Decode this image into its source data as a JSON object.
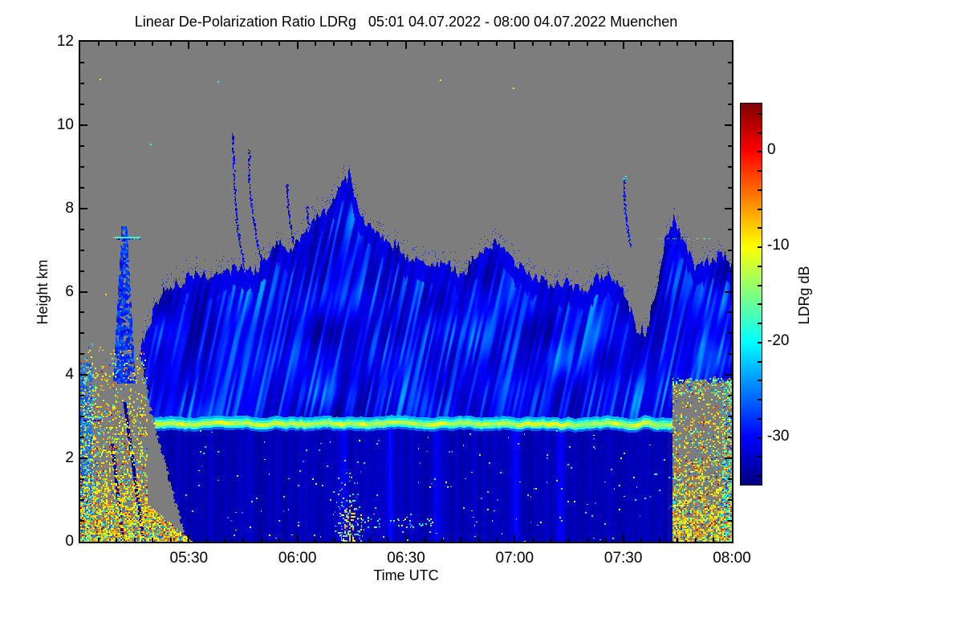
{
  "chart_data": {
    "type": "heatmap",
    "title": "Linear De-Polarization Ratio LDRg   05:01 04.07.2022 - 08:00 04.07.2022 Muenchen",
    "quantity": "Linear De-Polarization Ratio LDRg",
    "time_span": "05:01 04.07.2022 - 08:00 04.07.2022",
    "station": "Muenchen",
    "xlabel": "Time UTC",
    "ylabel": "Height km",
    "x_range_hours": [
      5.0,
      8.0
    ],
    "y_range_km": [
      0,
      12
    ],
    "x_ticks": [
      {
        "hour": 5.5,
        "label": "05:30"
      },
      {
        "hour": 6.0,
        "label": "06:00"
      },
      {
        "hour": 6.5,
        "label": "06:30"
      },
      {
        "hour": 7.0,
        "label": "07:00"
      },
      {
        "hour": 7.5,
        "label": "07:30"
      },
      {
        "hour": 8.0,
        "label": "08:00"
      }
    ],
    "x_minor_step_hours": 0.0833333,
    "y_ticks": [
      {
        "km": 0,
        "label": "0"
      },
      {
        "km": 2,
        "label": "2"
      },
      {
        "km": 4,
        "label": "4"
      },
      {
        "km": 6,
        "label": "6"
      },
      {
        "km": 8,
        "label": "8"
      },
      {
        "km": 10,
        "label": "10"
      },
      {
        "km": 12,
        "label": "12"
      }
    ],
    "y_minor_step_km": 0.5,
    "grid": false,
    "no_data_color": "#7d7d7d",
    "colorbar": {
      "label": "LDRg dB",
      "colormap": "jet",
      "range_db": [
        -35,
        5
      ],
      "ticks": [
        {
          "db": 0,
          "label": "0"
        },
        {
          "db": -10,
          "label": "-10"
        },
        {
          "db": -20,
          "label": "-20"
        },
        {
          "db": -30,
          "label": "-30"
        }
      ],
      "minor_step_db": 2,
      "gradient_stops": [
        [
          "#00007f",
          0
        ],
        [
          "#0000ff",
          12.5
        ],
        [
          "#00ffff",
          37.5
        ],
        [
          "#80ff80",
          50
        ],
        [
          "#ffff00",
          62.5
        ],
        [
          "#ff8000",
          75
        ],
        [
          "#ff0000",
          87.5
        ],
        [
          "#7f0000",
          100
        ]
      ]
    },
    "render": {
      "vmin": -35,
      "vmax": 5,
      "cloud_top_profile": [
        [
          5.24,
          4.1
        ],
        [
          5.3,
          5.0
        ],
        [
          5.37,
          5.9
        ],
        [
          5.48,
          6.3
        ],
        [
          5.61,
          6.4
        ],
        [
          5.74,
          6.6
        ],
        [
          5.81,
          6.4
        ],
        [
          5.91,
          7.2
        ],
        [
          5.96,
          6.9
        ],
        [
          6.06,
          7.6
        ],
        [
          6.15,
          8.1
        ],
        [
          6.24,
          8.9
        ],
        [
          6.28,
          8.0
        ],
        [
          6.33,
          7.5
        ],
        [
          6.41,
          7.3
        ],
        [
          6.5,
          6.9
        ],
        [
          6.59,
          6.7
        ],
        [
          6.69,
          6.7
        ],
        [
          6.76,
          6.4
        ],
        [
          6.85,
          7.0
        ],
        [
          6.91,
          7.2
        ],
        [
          7.0,
          6.7
        ],
        [
          7.11,
          6.3
        ],
        [
          7.22,
          6.2
        ],
        [
          7.33,
          6.0
        ],
        [
          7.43,
          6.5
        ],
        [
          7.5,
          6.1
        ],
        [
          7.56,
          5.2
        ],
        [
          7.61,
          5.0
        ],
        [
          7.69,
          7.2
        ],
        [
          7.73,
          7.7
        ],
        [
          7.78,
          7.2
        ],
        [
          7.83,
          6.7
        ],
        [
          7.89,
          6.7
        ],
        [
          7.96,
          6.9
        ],
        [
          8.0,
          6.7
        ]
      ],
      "cloud_left_edge": [
        [
          0,
          5.49
        ],
        [
          0.6,
          5.458
        ],
        [
          1.4,
          5.414
        ],
        [
          2.2,
          5.373
        ],
        [
          3.0,
          5.33
        ],
        [
          3.8,
          5.303
        ],
        [
          4.4,
          5.281
        ],
        [
          4.9,
          5.263
        ],
        [
          5.2,
          5.285
        ],
        [
          5.7,
          5.33
        ],
        [
          6.1,
          5.36
        ],
        [
          6.45,
          5.31
        ],
        [
          12,
          5.3
        ]
      ],
      "melting_layer": {
        "km": 2.82,
        "from": 5.285,
        "to": 7.728,
        "core_db": -12.5,
        "edge_db": -18.2
      },
      "ml_left_segment": {
        "from": 5.013,
        "to": 5.095,
        "km": 3.0,
        "db": -19
      },
      "right_gray": {
        "from_hour": 7.727,
        "top_km": 3.85
      },
      "tower": {
        "center_hour": 5.203,
        "base_km": 3.9,
        "top_km": 7.52
      },
      "bright_cols": [
        6.215,
        6.43,
        6.64,
        7.005,
        7.215
      ],
      "virga": [
        [
          [
            5.7,
            9.8
          ],
          [
            5.703,
            9.2
          ],
          [
            5.708,
            8.5
          ],
          [
            5.72,
            7.6
          ],
          [
            5.745,
            6.8
          ],
          [
            5.775,
            6.1
          ]
        ],
        [
          [
            5.775,
            9.45
          ],
          [
            5.775,
            8.7
          ],
          [
            5.79,
            7.9
          ],
          [
            5.815,
            7.1
          ],
          [
            5.85,
            6.4
          ]
        ],
        [
          [
            5.95,
            8.6
          ],
          [
            5.955,
            8.0
          ],
          [
            5.975,
            7.3
          ],
          [
            6.0,
            6.8
          ]
        ],
        [
          [
            6.04,
            8.05
          ],
          [
            6.05,
            7.6
          ],
          [
            6.07,
            7.15
          ]
        ]
      ],
      "streak_0730": [
        [
          7.503,
          8.68
        ],
        [
          7.502,
          8.3
        ],
        [
          7.507,
          7.9
        ],
        [
          7.52,
          7.45
        ],
        [
          7.53,
          7.1
        ]
      ],
      "cyan_dashes": [
        {
          "from": 5.152,
          "to": 5.272,
          "km": 7.3,
          "db": -18,
          "solid": true
        },
        {
          "from": 7.665,
          "to": 7.895,
          "km": 7.28,
          "db": -16,
          "solid": false
        }
      ],
      "dark_streaks": [
        [
          [
            5.205,
            3.35
          ],
          [
            5.24,
            2.0
          ],
          [
            5.276,
            0.6
          ],
          [
            5.292,
            0.0
          ]
        ],
        [
          [
            5.148,
            2.35
          ],
          [
            5.17,
            1.3
          ],
          [
            5.197,
            0.0
          ]
        ]
      ],
      "high_specks": [
        [
          5.09,
          11.12,
          -9
        ],
        [
          5.632,
          11.06,
          -19
        ],
        [
          6.655,
          11.1,
          -9
        ],
        [
          5.32,
          9.55,
          -19
        ],
        [
          6.99,
          10.9,
          -13
        ],
        [
          5.115,
          5.95,
          -9
        ],
        [
          7.51,
          8.78,
          -19
        ]
      ],
      "noise_regions": [
        {
          "name": "bottom-left",
          "t": [
            5.0,
            5.52
          ],
          "km": [
            0,
            4.75
          ],
          "palette": "warm",
          "shape": "left-wedge",
          "steps": [
            [
              0.25,
              0.85
            ],
            [
              0.9,
              0.7
            ],
            [
              1.6,
              0.5
            ],
            [
              2.4,
              0.33
            ],
            [
              3.3,
              0.2
            ],
            [
              4.3,
              0.09
            ],
            [
              4.75,
              0.03
            ]
          ]
        },
        {
          "name": "bottom-right",
          "t": [
            7.727,
            8.0
          ],
          "km": [
            0,
            3.95
          ],
          "palette": "warm",
          "steps": [
            [
              0.6,
              0.8
            ],
            [
              1.2,
              0.55
            ],
            [
              2.0,
              0.38
            ],
            [
              3.0,
              0.22
            ],
            [
              3.95,
              0.12
            ]
          ]
        },
        {
          "name": "right-edge",
          "t": [
            7.957,
            8.0
          ],
          "km": [
            0,
            3.9
          ],
          "palette": "mixed",
          "steps": [
            [
              3.9,
              0.5
            ]
          ]
        },
        {
          "name": "right-gray-top-band",
          "t": [
            7.727,
            8.0
          ],
          "km": [
            3.55,
            3.95
          ],
          "palette": "mixed",
          "steps": [
            [
              3.95,
              0.22
            ]
          ]
        },
        {
          "name": "plume",
          "t": [
            6.16,
            6.31
          ],
          "km": [
            0,
            2.1
          ],
          "palette": "cyanish",
          "shape": "plume",
          "steps": [
            [
              2.1,
              0.55
            ]
          ]
        },
        {
          "name": "bottom-dashes",
          "t": [
            6.28,
            6.62
          ],
          "km": [
            0.38,
            0.62
          ],
          "palette": "cyanish",
          "steps": [
            [
              0.62,
              0.12
            ]
          ]
        },
        {
          "name": "sparse-low",
          "t": [
            5.45,
            7.72
          ],
          "km": [
            0,
            2.7
          ],
          "palette": "cyanish",
          "steps": [
            [
              2.7,
              0.008
            ]
          ]
        },
        {
          "name": "left-columns",
          "t": [
            5.013,
            5.053
          ],
          "km": [
            0,
            4.3
          ],
          "palette": "mixed",
          "steps": [
            [
              4.3,
              0.22
            ]
          ]
        },
        {
          "name": "left-wedge-sparse",
          "t": [
            5.02,
            5.3
          ],
          "km": [
            2.0,
            4.6
          ],
          "palette": "warm",
          "steps": [
            [
              4.6,
              0.05
            ]
          ]
        }
      ]
    }
  }
}
